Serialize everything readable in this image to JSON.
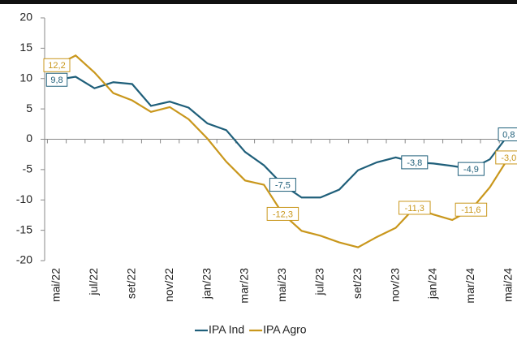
{
  "chart_data": {
    "type": "line",
    "categories": [
      "mai/22",
      null,
      "jul/22",
      null,
      "set/22",
      null,
      "nov/22",
      null,
      "jan/23",
      null,
      "mar/23",
      null,
      "mai/23",
      null,
      "jul/23",
      null,
      "set/23",
      null,
      "nov/23",
      null,
      "jan/24",
      null,
      "mar/24",
      null,
      "mai/24"
    ],
    "series": [
      {
        "name": "IPA Ind",
        "color": "#1f5f7a",
        "values": [
          9.8,
          10.3,
          8.4,
          9.4,
          9.1,
          5.5,
          6.2,
          5.2,
          2.6,
          1.5,
          -2.1,
          -4.3,
          -7.5,
          -9.6,
          -9.6,
          -8.3,
          -5.1,
          -3.8,
          -3.0,
          -3.8,
          -4.0,
          -4.4,
          -4.9,
          -3.3,
          0.8
        ],
        "value_labels": [
          "9,8",
          null,
          null,
          null,
          null,
          null,
          null,
          null,
          null,
          null,
          null,
          null,
          "-7,5",
          null,
          null,
          null,
          null,
          null,
          null,
          "-3,8",
          null,
          null,
          "-4,9",
          null,
          "0,8"
        ]
      },
      {
        "name": "IPA Agro",
        "color": "#c9971c",
        "values": [
          12.2,
          13.8,
          11.0,
          7.6,
          6.4,
          4.5,
          5.3,
          3.3,
          0.1,
          -3.7,
          -6.8,
          -7.5,
          -12.3,
          -15.1,
          -15.9,
          -17.0,
          -17.8,
          -16.1,
          -14.6,
          -11.3,
          -12.4,
          -13.3,
          -11.6,
          -7.9,
          -3.0
        ],
        "value_labels": [
          "12,2",
          null,
          null,
          null,
          null,
          null,
          null,
          null,
          null,
          null,
          null,
          null,
          "-12,3",
          null,
          null,
          null,
          null,
          null,
          null,
          "-11,3",
          null,
          null,
          "-11,6",
          null,
          "-3,0"
        ]
      }
    ],
    "ylim": [
      -20,
      20
    ],
    "yticks": [
      -20,
      -15,
      -10,
      -5,
      0,
      5,
      10,
      15,
      20
    ],
    "grid": false,
    "legend": "bottom"
  }
}
